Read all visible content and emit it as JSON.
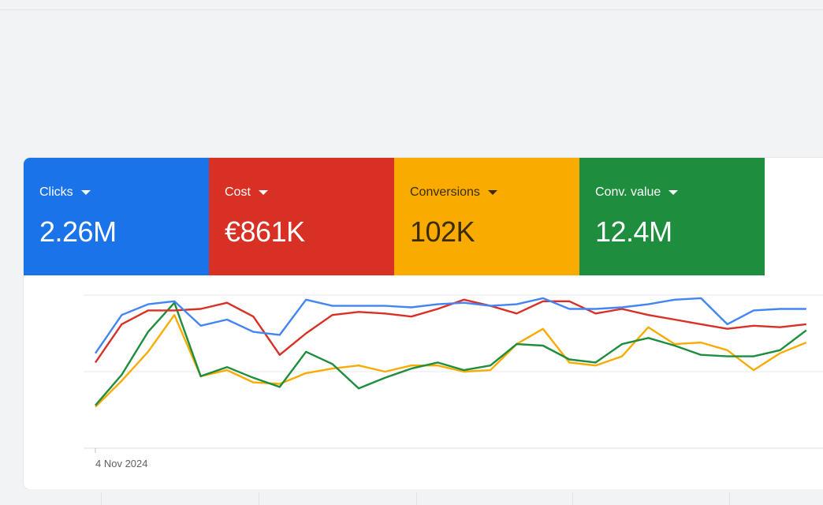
{
  "scorecards": [
    {
      "label": "Clicks",
      "value": "2.26M",
      "color": "#1a73e8",
      "text_color": "#ffffff",
      "icon": "caret-down-icon"
    },
    {
      "label": "Cost",
      "value": "€861K",
      "color": "#d93025",
      "text_color": "#ffffff",
      "icon": "caret-down-icon"
    },
    {
      "label": "Conversions",
      "value": "102K",
      "color": "#f9ab00",
      "text_color": "#3c2d00",
      "icon": "caret-down-icon"
    },
    {
      "label": "Conv. value",
      "value": "12.4M",
      "color": "#1e8e3e",
      "text_color": "#ffffff",
      "icon": "caret-down-icon"
    }
  ],
  "chart_data": {
    "type": "line",
    "x_start_label": "4 Nov 2024",
    "grid": true,
    "ylim": [
      0,
      100
    ],
    "series": [
      {
        "metric": "Clicks",
        "color": "#4285f4",
        "values": [
          62,
          87,
          94,
          96,
          80,
          84,
          76,
          74,
          97,
          93,
          93,
          93,
          92,
          94,
          95,
          93,
          94,
          98,
          91,
          91,
          92,
          94,
          97,
          98,
          81,
          90,
          91,
          91
        ]
      },
      {
        "metric": "Cost",
        "color": "#d93025",
        "values": [
          56,
          81,
          90,
          90,
          91,
          95,
          86,
          61,
          75,
          87,
          89,
          88,
          86,
          91,
          97,
          93,
          88,
          96,
          96,
          88,
          91,
          87,
          84,
          81,
          78,
          80,
          79,
          81
        ]
      },
      {
        "metric": "Conversions",
        "color": "#f9ab00",
        "values": [
          27,
          44,
          63,
          87,
          47,
          51,
          43,
          42,
          49,
          52,
          54,
          50,
          54,
          54,
          50,
          51,
          68,
          78,
          56,
          54,
          60,
          79,
          68,
          69,
          64,
          51,
          62,
          69
        ]
      },
      {
        "metric": "Conv. value",
        "color": "#1e8e3e",
        "values": [
          28,
          48,
          76,
          95,
          47,
          53,
          46,
          40,
          63,
          55,
          39,
          46,
          52,
          56,
          51,
          54,
          68,
          67,
          58,
          56,
          68,
          72,
          67,
          61,
          60,
          60,
          64,
          77
        ]
      }
    ]
  }
}
